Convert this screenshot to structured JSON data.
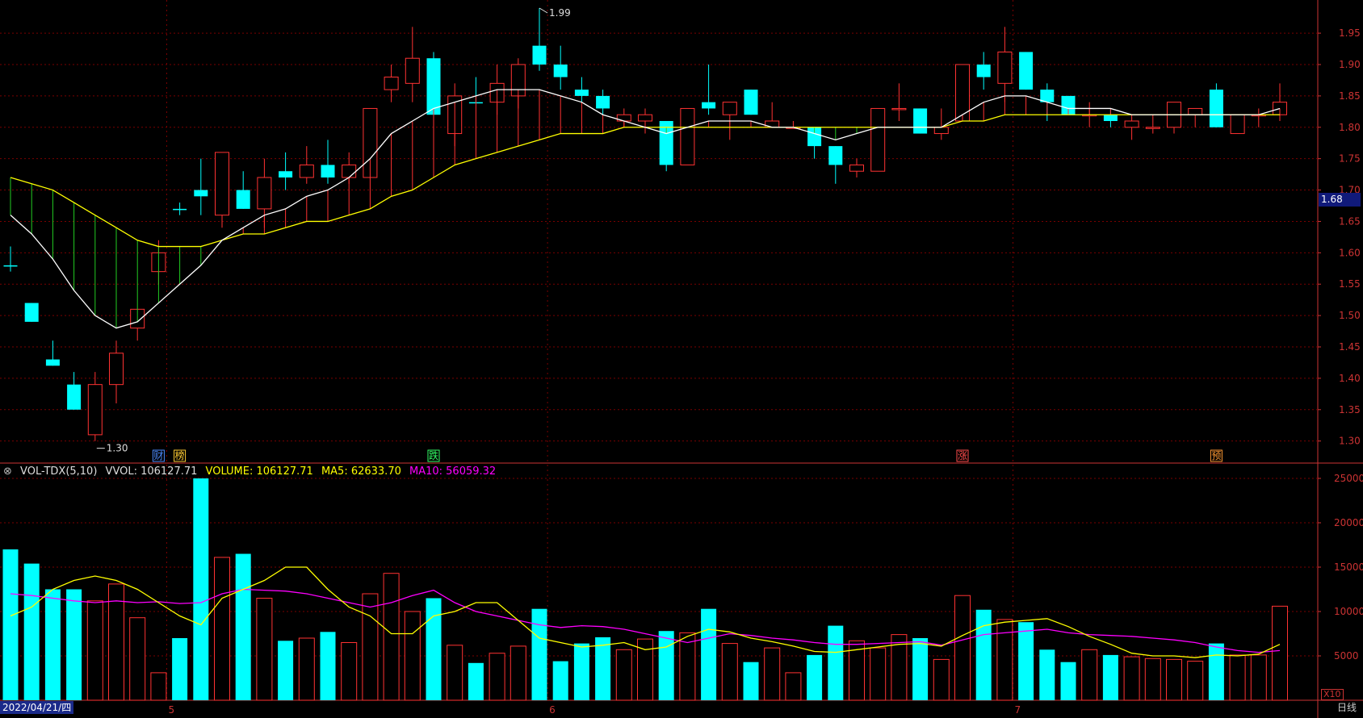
{
  "chart_data": [
    {
      "type": "candlestick",
      "ylim": [
        1.27,
        1.99
      ],
      "y_ticks": [
        "1.95",
        "1.90",
        "1.85",
        "1.80",
        "1.75",
        "1.70",
        "1.65",
        "1.60",
        "1.55",
        "1.50",
        "1.45",
        "1.40",
        "1.35",
        "1.30"
      ],
      "annotations": {
        "high_label": "1.99",
        "low_label": "1.30",
        "current_price": "1.68"
      },
      "x_labels": [
        "5",
        "6",
        "7"
      ],
      "markers": [
        {
          "text": "财",
          "color": "#4d8cff",
          "index": 7
        },
        {
          "text": "榜",
          "color": "#ffcc33",
          "index": 8
        },
        {
          "text": "跌",
          "color": "#33ff66",
          "index": 20
        },
        {
          "text": "涨",
          "color": "#ff4d4d",
          "index": 45
        },
        {
          "text": "预",
          "color": "#ff9933",
          "index": 57
        }
      ],
      "candles": [
        {
          "o": 1.58,
          "h": 1.61,
          "l": 1.57,
          "c": 1.58,
          "up": false
        },
        {
          "o": 1.52,
          "h": 1.52,
          "l": 1.49,
          "c": 1.49,
          "up": false
        },
        {
          "o": 1.43,
          "h": 1.46,
          "l": 1.42,
          "c": 1.42,
          "up": false
        },
        {
          "o": 1.39,
          "h": 1.41,
          "l": 1.35,
          "c": 1.35,
          "up": false
        },
        {
          "o": 1.31,
          "h": 1.41,
          "l": 1.3,
          "c": 1.39,
          "up": true
        },
        {
          "o": 1.39,
          "h": 1.46,
          "l": 1.36,
          "c": 1.44,
          "up": true
        },
        {
          "o": 1.48,
          "h": 1.51,
          "l": 1.46,
          "c": 1.51,
          "up": true
        },
        {
          "o": 1.57,
          "h": 1.62,
          "l": 1.55,
          "c": 1.6,
          "up": true
        },
        {
          "o": 1.67,
          "h": 1.68,
          "l": 1.66,
          "c": 1.67,
          "up": false
        },
        {
          "o": 1.7,
          "h": 1.75,
          "l": 1.66,
          "c": 1.69,
          "up": false
        },
        {
          "o": 1.66,
          "h": 1.76,
          "l": 1.64,
          "c": 1.76,
          "up": true
        },
        {
          "o": 1.7,
          "h": 1.73,
          "l": 1.67,
          "c": 1.67,
          "up": false
        },
        {
          "o": 1.67,
          "h": 1.75,
          "l": 1.64,
          "c": 1.72,
          "up": true
        },
        {
          "o": 1.73,
          "h": 1.76,
          "l": 1.7,
          "c": 1.72,
          "up": false
        },
        {
          "o": 1.72,
          "h": 1.77,
          "l": 1.71,
          "c": 1.74,
          "up": true
        },
        {
          "o": 1.74,
          "h": 1.78,
          "l": 1.71,
          "c": 1.72,
          "up": false
        },
        {
          "o": 1.72,
          "h": 1.76,
          "l": 1.71,
          "c": 1.74,
          "up": true
        },
        {
          "o": 1.72,
          "h": 1.83,
          "l": 1.72,
          "c": 1.83,
          "up": true
        },
        {
          "o": 1.86,
          "h": 1.9,
          "l": 1.84,
          "c": 1.88,
          "up": true
        },
        {
          "o": 1.87,
          "h": 1.96,
          "l": 1.84,
          "c": 1.91,
          "up": true
        },
        {
          "o": 1.91,
          "h": 1.92,
          "l": 1.81,
          "c": 1.82,
          "up": false
        },
        {
          "o": 1.79,
          "h": 1.87,
          "l": 1.77,
          "c": 1.85,
          "up": true
        },
        {
          "o": 1.84,
          "h": 1.88,
          "l": 1.84,
          "c": 1.84,
          "up": false
        },
        {
          "o": 1.84,
          "h": 1.9,
          "l": 1.82,
          "c": 1.87,
          "up": true
        },
        {
          "o": 1.85,
          "h": 1.91,
          "l": 1.83,
          "c": 1.9,
          "up": true
        },
        {
          "o": 1.93,
          "h": 1.99,
          "l": 1.89,
          "c": 1.9,
          "up": false
        },
        {
          "o": 1.9,
          "h": 1.93,
          "l": 1.86,
          "c": 1.88,
          "up": false
        },
        {
          "o": 1.86,
          "h": 1.88,
          "l": 1.84,
          "c": 1.85,
          "up": false
        },
        {
          "o": 1.85,
          "h": 1.86,
          "l": 1.82,
          "c": 1.83,
          "up": false
        },
        {
          "o": 1.81,
          "h": 1.83,
          "l": 1.8,
          "c": 1.82,
          "up": true
        },
        {
          "o": 1.81,
          "h": 1.83,
          "l": 1.79,
          "c": 1.82,
          "up": true
        },
        {
          "o": 1.81,
          "h": 1.81,
          "l": 1.73,
          "c": 1.74,
          "up": false
        },
        {
          "o": 1.74,
          "h": 1.83,
          "l": 1.74,
          "c": 1.83,
          "up": true
        },
        {
          "o": 1.84,
          "h": 1.9,
          "l": 1.82,
          "c": 1.83,
          "up": false
        },
        {
          "o": 1.82,
          "h": 1.84,
          "l": 1.78,
          "c": 1.84,
          "up": true
        },
        {
          "o": 1.86,
          "h": 1.86,
          "l": 1.82,
          "c": 1.82,
          "up": false
        },
        {
          "o": 1.8,
          "h": 1.84,
          "l": 1.8,
          "c": 1.81,
          "up": true
        },
        {
          "o": 1.8,
          "h": 1.81,
          "l": 1.8,
          "c": 1.8,
          "up": true
        },
        {
          "o": 1.8,
          "h": 1.8,
          "l": 1.75,
          "c": 1.77,
          "up": false
        },
        {
          "o": 1.77,
          "h": 1.77,
          "l": 1.71,
          "c": 1.74,
          "up": false
        },
        {
          "o": 1.73,
          "h": 1.75,
          "l": 1.72,
          "c": 1.74,
          "up": true
        },
        {
          "o": 1.73,
          "h": 1.83,
          "l": 1.73,
          "c": 1.83,
          "up": true
        },
        {
          "o": 1.83,
          "h": 1.87,
          "l": 1.81,
          "c": 1.83,
          "up": true
        },
        {
          "o": 1.83,
          "h": 1.83,
          "l": 1.79,
          "c": 1.79,
          "up": false
        },
        {
          "o": 1.79,
          "h": 1.83,
          "l": 1.78,
          "c": 1.8,
          "up": true
        },
        {
          "o": 1.81,
          "h": 1.9,
          "l": 1.81,
          "c": 1.9,
          "up": true
        },
        {
          "o": 1.9,
          "h": 1.92,
          "l": 1.86,
          "c": 1.88,
          "up": false
        },
        {
          "o": 1.87,
          "h": 1.96,
          "l": 1.84,
          "c": 1.92,
          "up": true
        },
        {
          "o": 1.92,
          "h": 1.92,
          "l": 1.86,
          "c": 1.86,
          "up": false
        },
        {
          "o": 1.86,
          "h": 1.87,
          "l": 1.81,
          "c": 1.84,
          "up": false
        },
        {
          "o": 1.85,
          "h": 1.85,
          "l": 1.82,
          "c": 1.82,
          "up": false
        },
        {
          "o": 1.82,
          "h": 1.84,
          "l": 1.8,
          "c": 1.82,
          "up": true
        },
        {
          "o": 1.82,
          "h": 1.83,
          "l": 1.8,
          "c": 1.81,
          "up": false
        },
        {
          "o": 1.8,
          "h": 1.82,
          "l": 1.78,
          "c": 1.81,
          "up": true
        },
        {
          "o": 1.8,
          "h": 1.82,
          "l": 1.79,
          "c": 1.8,
          "up": true
        },
        {
          "o": 1.8,
          "h": 1.84,
          "l": 1.79,
          "c": 1.84,
          "up": true
        },
        {
          "o": 1.82,
          "h": 1.83,
          "l": 1.8,
          "c": 1.83,
          "up": true
        },
        {
          "o": 1.86,
          "h": 1.87,
          "l": 1.8,
          "c": 1.8,
          "up": false
        },
        {
          "o": 1.79,
          "h": 1.82,
          "l": 1.79,
          "c": 1.82,
          "up": true
        },
        {
          "o": 1.82,
          "h": 1.83,
          "l": 1.8,
          "c": 1.82,
          "up": true
        },
        {
          "o": 1.82,
          "h": 1.87,
          "l": 1.81,
          "c": 1.84,
          "up": true
        }
      ],
      "ma_white": [
        1.66,
        1.63,
        1.59,
        1.54,
        1.5,
        1.48,
        1.49,
        1.52,
        1.55,
        1.58,
        1.62,
        1.64,
        1.66,
        1.67,
        1.69,
        1.7,
        1.72,
        1.75,
        1.79,
        1.81,
        1.83,
        1.84,
        1.85,
        1.86,
        1.86,
        1.86,
        1.85,
        1.84,
        1.82,
        1.81,
        1.8,
        1.79,
        1.8,
        1.81,
        1.81,
        1.81,
        1.8,
        1.8,
        1.79,
        1.78,
        1.79,
        1.8,
        1.8,
        1.8,
        1.8,
        1.82,
        1.84,
        1.85,
        1.85,
        1.84,
        1.83,
        1.83,
        1.83,
        1.82,
        1.82,
        1.82,
        1.82,
        1.82,
        1.82,
        1.82,
        1.83
      ],
      "ma_yellow": [
        1.72,
        1.71,
        1.7,
        1.68,
        1.66,
        1.64,
        1.62,
        1.61,
        1.61,
        1.61,
        1.62,
        1.63,
        1.63,
        1.64,
        1.65,
        1.65,
        1.66,
        1.67,
        1.69,
        1.7,
        1.72,
        1.74,
        1.75,
        1.76,
        1.77,
        1.78,
        1.79,
        1.79,
        1.79,
        1.8,
        1.8,
        1.8,
        1.8,
        1.8,
        1.8,
        1.8,
        1.8,
        1.8,
        1.8,
        1.8,
        1.8,
        1.8,
        1.8,
        1.8,
        1.8,
        1.81,
        1.81,
        1.82,
        1.82,
        1.82,
        1.82,
        1.82,
        1.82,
        1.82,
        1.82,
        1.82,
        1.82,
        1.82,
        1.82,
        1.82,
        1.82
      ]
    },
    {
      "type": "bar",
      "title": "VOL-TDX(5,10)",
      "legend": {
        "vvol": "VVOL: 106127.71",
        "volume": "VOLUME: 106127.71",
        "ma5": "MA5: 62633.70",
        "ma10": "MA10: 56059.32"
      },
      "ylim": [
        0,
        26000
      ],
      "y_ticks": [
        "25000",
        "20000",
        "15000",
        "10000",
        "5000"
      ],
      "volume": [
        17000,
        15400,
        12500,
        12500,
        11200,
        13100,
        9300,
        3100,
        7000,
        25000,
        16100,
        16500,
        11500,
        6700,
        7000,
        7700,
        6500,
        12000,
        14300,
        10000,
        11500,
        6200,
        4200,
        5300,
        6100,
        10300,
        4400,
        6400,
        7100,
        5700,
        6900,
        7800,
        7600,
        10300,
        6400,
        4300,
        5900,
        3100,
        5100,
        8400,
        6700,
        5900,
        7400,
        7000,
        4600,
        11800,
        10200,
        9100,
        8800,
        5700,
        4300,
        5700,
        5100,
        4900,
        4700,
        4600,
        4400,
        6400,
        5100,
        5100,
        10600
      ],
      "ma5": [
        9500,
        10500,
        12500,
        13500,
        14000,
        13500,
        12500,
        11000,
        9500,
        8500,
        11500,
        12500,
        13500,
        15000,
        15000,
        12500,
        10500,
        9500,
        7500,
        7500,
        9500,
        10000,
        11000,
        11000,
        9000,
        7000,
        6500,
        6000,
        6200,
        6500,
        5700,
        6000,
        7200,
        8000,
        7700,
        7000,
        6600,
        6100,
        5500,
        5400,
        5700,
        6000,
        6300,
        6400,
        6100,
        7300,
        8400,
        8800,
        9000,
        9200,
        8300,
        7200,
        6300,
        5300,
        5000,
        5000,
        4800,
        5100,
        5000,
        5200,
        6300
      ],
      "ma10": [
        12000,
        11800,
        11500,
        11200,
        11000,
        11200,
        11000,
        11100,
        10900,
        11000,
        12000,
        12500,
        12400,
        12300,
        12000,
        11500,
        11000,
        10500,
        11000,
        11800,
        12400,
        11000,
        10000,
        9500,
        9000,
        8500,
        8200,
        8400,
        8300,
        8000,
        7500,
        7000,
        6500,
        7000,
        7500,
        7300,
        7000,
        6800,
        6500,
        6300,
        6300,
        6400,
        6500,
        6600,
        6200,
        6800,
        7400,
        7600,
        7800,
        8000,
        7600,
        7400,
        7300,
        7200,
        7000,
        6800,
        6500,
        6000,
        5600,
        5400,
        5600
      ]
    }
  ],
  "ui": {
    "date_label": "2022/04/21/四",
    "period_label": "日线",
    "zoom_label": "X10"
  },
  "colors": {
    "up": "#ff3232",
    "down": "#00ffff",
    "ma_white": "#ffffff",
    "ma_yellow": "#ffff00",
    "vol_ma5": "#ffff00",
    "vol_ma10": "#ff00ff",
    "grid": "#7a0000",
    "axis": "#cc3333"
  }
}
